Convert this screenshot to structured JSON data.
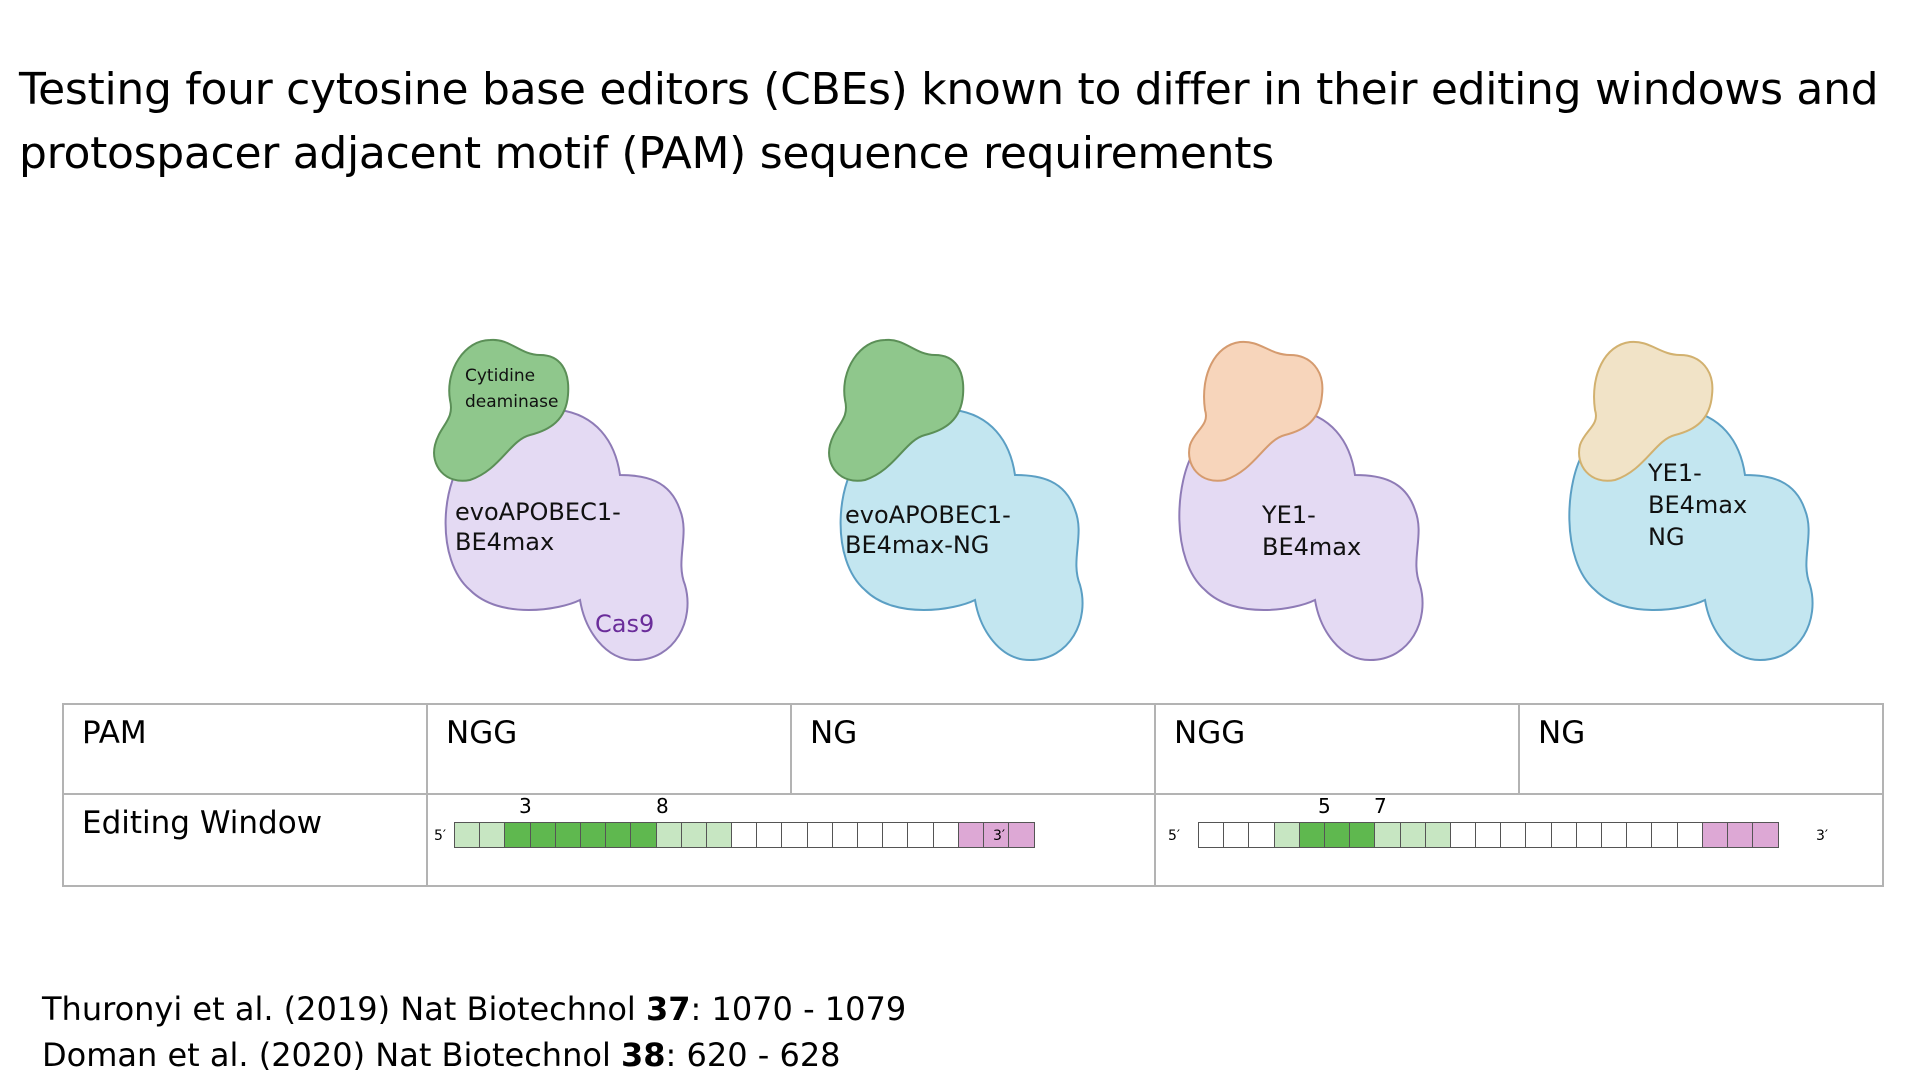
{
  "title": "Testing four cytosine base editors (CBEs) known to differ in their editing windows and protospacer adjacent motif (PAM) sequence requirements",
  "colors": {
    "cas9_lavender": "#e4daf3",
    "cas9_lavender_edge": "#8e7bb6",
    "cas9_blue": "#c3e6f0",
    "cas9_blue_edge": "#5b9fc4",
    "deaminase_green": "#8fc78c",
    "deaminase_green_edge": "#5b8f57",
    "deaminase_peach": "#f7d5bb",
    "deaminase_peach_edge": "#d59b6f",
    "deaminase_cream": "#f1e3c7",
    "deaminase_cream_edge": "#d2b16f",
    "window_core": "#5fb84f",
    "window_flank": "#c7e6c2",
    "pam_pink": "#dda8d5"
  },
  "editors": [
    {
      "label_line1": "evoAPOBEC1-",
      "label_line2": "BE4max",
      "deaminase_label_line1": "Cytidine",
      "deaminase_label_line2": "deaminase",
      "cas_label": "Cas9"
    },
    {
      "label_line1": "evoAPOBEC1-",
      "label_line2": "BE4max-NG"
    },
    {
      "label_line1": "YE1-",
      "label_line2": "BE4max"
    },
    {
      "label_line1": "YE1-",
      "label_line2": "BE4max",
      "label_line3": "NG"
    }
  ],
  "table": {
    "pam_header": "PAM",
    "window_header": "Editing Window",
    "pam_values": [
      "NGG",
      "NG",
      "NGG",
      "NG"
    ],
    "window_a": {
      "end5": "5′",
      "end3": "3′",
      "pos_start": "3",
      "pos_end": "8",
      "cells": [
        "flank",
        "flank",
        "core",
        "core",
        "core",
        "core",
        "core",
        "core",
        "flank",
        "flank",
        "flank",
        "none",
        "none",
        "none",
        "none",
        "none",
        "none",
        "none",
        "none",
        "none",
        "pam",
        "pam",
        "pam"
      ]
    },
    "window_b": {
      "end5": "5′",
      "end3": "3′",
      "pos_start": "5",
      "pos_end": "7",
      "cells": [
        "none",
        "none",
        "none",
        "flank",
        "core",
        "core",
        "core",
        "flank",
        "flank",
        "flank",
        "none",
        "none",
        "none",
        "none",
        "none",
        "none",
        "none",
        "none",
        "none",
        "none",
        "pam",
        "pam",
        "pam"
      ]
    }
  },
  "references": [
    {
      "pre": "Thuronyi et al. (2019) Nat Biotechnol ",
      "vol": "37",
      "post": ": 1070 - 1079"
    },
    {
      "pre": "Doman et al. (2020) Nat Biotechnol ",
      "vol": "38",
      "post": ": 620 - 628"
    }
  ]
}
